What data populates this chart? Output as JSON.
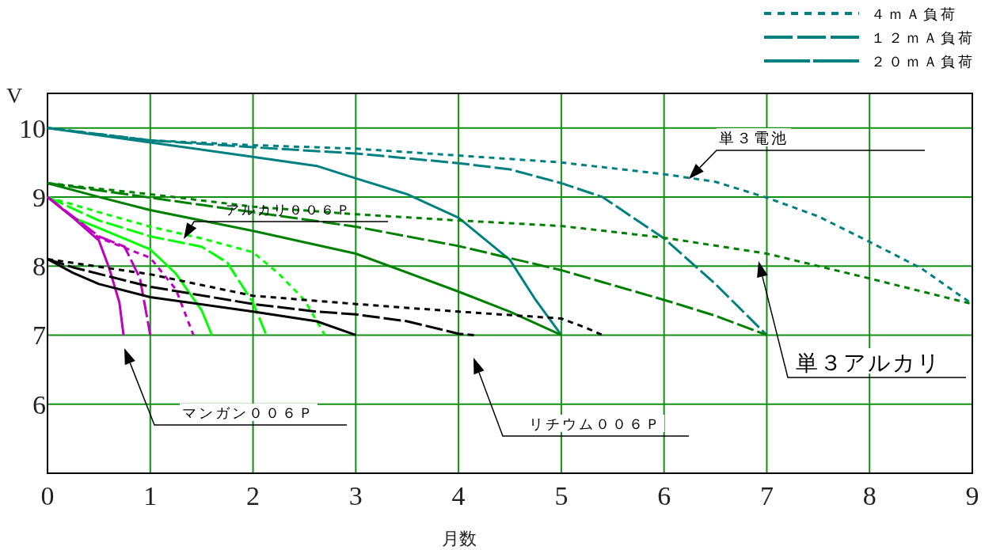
{
  "chart_data": {
    "type": "line",
    "xlabel": "月数",
    "ylabel": "V",
    "xlim": [
      0,
      9
    ],
    "ylim": [
      5,
      10.5
    ],
    "xticks": [
      0,
      1,
      2,
      3,
      4,
      5,
      6,
      7,
      8,
      9
    ],
    "yticks": [
      6,
      7,
      8,
      9,
      10
    ],
    "grid": true,
    "legend": "top right",
    "series": [
      {
        "name": "４ｍＡ負荷",
        "color": "#008080",
        "line_style": "dotted",
        "x": [
          0,
          1,
          2,
          3,
          4,
          5,
          6,
          6.5,
          7,
          7.5,
          8,
          8.5,
          9
        ],
        "values": [
          10,
          9.82,
          9.75,
          9.7,
          9.6,
          9.5,
          9.33,
          9.22,
          8.99,
          8.72,
          8.35,
          7.97,
          7.45
        ]
      },
      {
        "name": "１２ｍＡ負荷",
        "color": "#008080",
        "line_style": "dashed",
        "x": [
          0,
          1,
          2,
          3,
          4,
          4.5,
          5,
          5.4,
          6,
          6.5,
          7
        ],
        "values": [
          10,
          9.82,
          9.72,
          9.63,
          9.49,
          9.4,
          9.2,
          9.0,
          8.4,
          7.74,
          7.0
        ]
      },
      {
        "name": "２０ｍＡ負荷",
        "color": "#008080",
        "line_style": "solid",
        "x": [
          0,
          1,
          2,
          2.62,
          3,
          3.5,
          4,
          4.5,
          4.75,
          5
        ],
        "values": [
          10,
          9.79,
          9.58,
          9.45,
          9.27,
          9.04,
          8.7,
          8.09,
          7.51,
          7.0
        ]
      },
      {
        "color": "#008000",
        "line_style": "dotted",
        "x": [
          0,
          1,
          2,
          3,
          4,
          5,
          6,
          7,
          8,
          9
        ],
        "values": [
          9.2,
          9.04,
          8.86,
          8.75,
          8.66,
          8.58,
          8.41,
          8.18,
          7.82,
          7.45
        ]
      },
      {
        "color": "#008000",
        "line_style": "dashed",
        "x": [
          0,
          1,
          2,
          3,
          4,
          5,
          6,
          6.5,
          7
        ],
        "values": [
          9.2,
          8.99,
          8.78,
          8.57,
          8.29,
          7.94,
          7.51,
          7.28,
          7.0
        ]
      },
      {
        "color": "#008000",
        "line_style": "solid",
        "x": [
          0,
          0.5,
          1,
          2,
          3,
          4,
          4.5,
          5
        ],
        "values": [
          9.2,
          9.0,
          8.81,
          8.51,
          8.18,
          7.63,
          7.34,
          7.0
        ]
      },
      {
        "color": "#00ff00",
        "line_style": "dotted",
        "x": [
          0,
          0.5,
          1,
          1.5,
          2,
          2.25,
          2.5,
          2.7
        ],
        "values": [
          9.0,
          8.78,
          8.57,
          8.4,
          8.2,
          7.89,
          7.51,
          7.0
        ]
      },
      {
        "color": "#00ff00",
        "line_style": "dashed",
        "x": [
          0,
          0.5,
          1,
          1.5,
          1.75,
          2,
          2.13
        ],
        "values": [
          9.0,
          8.66,
          8.43,
          8.28,
          8.05,
          7.47,
          7.0
        ]
      },
      {
        "color": "#00ff00",
        "line_style": "solid",
        "x": [
          0,
          0.25,
          0.5,
          1,
          1.25,
          1.5,
          1.6
        ],
        "values": [
          9.0,
          8.7,
          8.55,
          8.24,
          7.89,
          7.36,
          7.0
        ]
      },
      {
        "color": "#c000c0",
        "line_style": "dotted",
        "x": [
          0,
          0.5,
          1,
          1.25,
          1.42
        ],
        "values": [
          9.0,
          8.41,
          8.12,
          7.66,
          7.0
        ]
      },
      {
        "color": "#c000c0",
        "line_style": "dashed",
        "x": [
          0,
          0.5,
          0.75,
          0.9,
          1
        ],
        "values": [
          9.0,
          8.43,
          8.28,
          7.82,
          7.0
        ]
      },
      {
        "color": "#c000c0",
        "line_style": "solid",
        "x": [
          0,
          0.25,
          0.5,
          0.6,
          0.7,
          0.74
        ],
        "values": [
          9.0,
          8.7,
          8.37,
          7.97,
          7.47,
          7.0
        ]
      },
      {
        "color": "#000000",
        "line_style": "dotted",
        "x": [
          0,
          1,
          2,
          3,
          4,
          5,
          5.25,
          5.4
        ],
        "values": [
          8.1,
          7.88,
          7.57,
          7.45,
          7.34,
          7.24,
          7.1,
          7.0
        ]
      },
      {
        "color": "#000000",
        "line_style": "dashed",
        "x": [
          0,
          0.25,
          1,
          2,
          2.62,
          3,
          3.5,
          4,
          4.15
        ],
        "values": [
          8.1,
          7.98,
          7.7,
          7.45,
          7.34,
          7.3,
          7.2,
          7.02,
          7.0
        ]
      },
      {
        "color": "#000000",
        "line_style": "solid",
        "x": [
          0,
          0.25,
          0.5,
          1,
          2,
          2.62,
          3
        ],
        "values": [
          8.1,
          7.9,
          7.74,
          7.55,
          7.34,
          7.2,
          7.0
        ]
      }
    ],
    "annotations": [
      "アルカリ００６Ｐ",
      {
        "text": "単３電池",
        "x": 6.24,
        "y": 9.26
      },
      "単３アルカリ",
      "マンガン００６Ｐ",
      "リチウム００６Ｐ"
    ]
  }
}
